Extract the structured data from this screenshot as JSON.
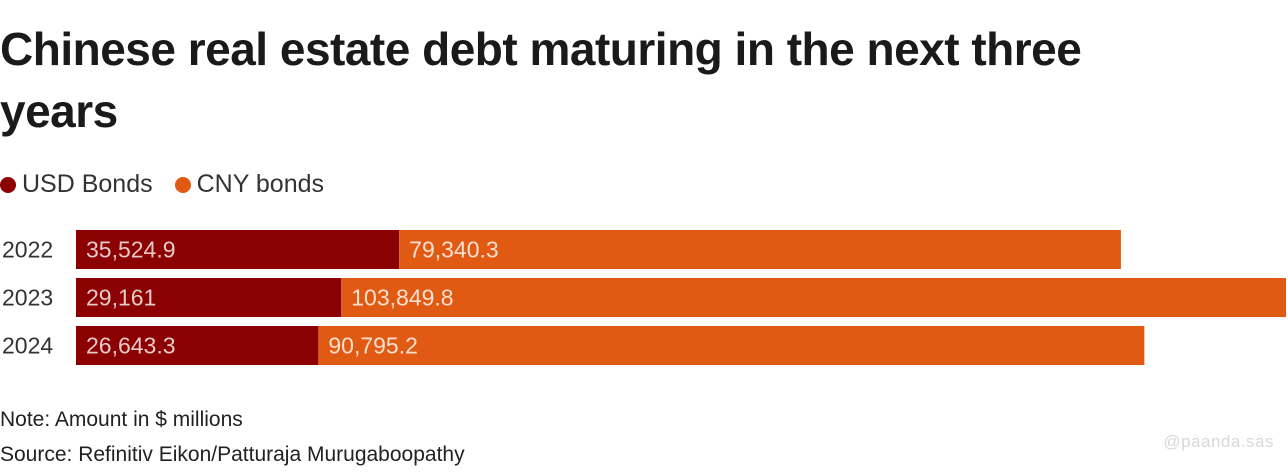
{
  "chart_data": {
    "type": "bar",
    "orientation": "horizontal",
    "stacked": true,
    "title": "Chinese real estate debt maturing in the next three years",
    "categories": [
      "2022",
      "2023",
      "2024"
    ],
    "series": [
      {
        "name": "USD Bonds",
        "color": "#8b0000",
        "values": [
          35524.9,
          29161,
          26643.3
        ],
        "labels": [
          "35,524.9",
          "29,161",
          "26,643.3"
        ]
      },
      {
        "name": "CNY bonds",
        "color": "#e05a14",
        "values": [
          79340.3,
          103849.8,
          90795.2
        ],
        "labels": [
          "79,340.3",
          "103,849.8",
          "90,795.2"
        ]
      }
    ],
    "legend_position": "top-left",
    "grid": false
  },
  "note": "Note: Amount in $ millions",
  "source": "Source: Refinitiv Eikon/Patturaja Murugaboopathy",
  "watermark": "@paanda.sas"
}
